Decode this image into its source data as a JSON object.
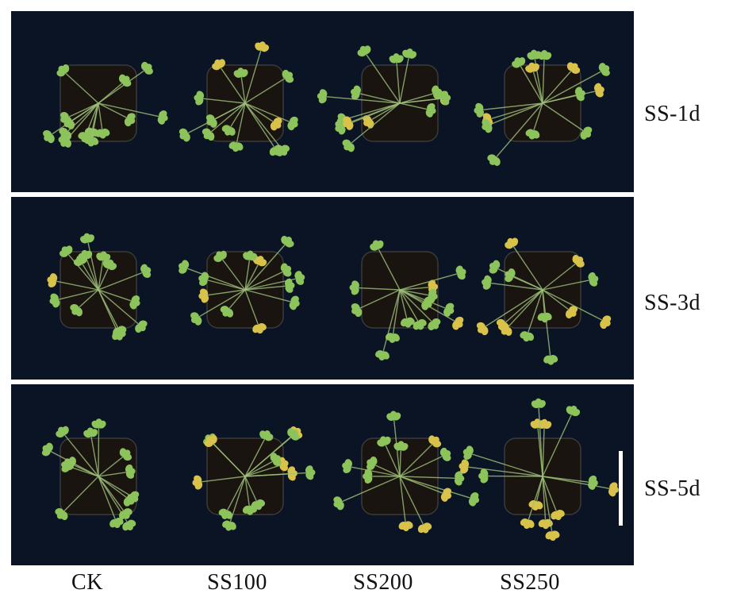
{
  "figure": {
    "rows": [
      {
        "label": "SS-1d"
      },
      {
        "label": "SS-3d"
      },
      {
        "label": "SS-5d"
      }
    ],
    "columns": [
      {
        "label": "CK"
      },
      {
        "label": "SS100"
      },
      {
        "label": "SS200"
      },
      {
        "label": "SS250"
      }
    ],
    "colors": {
      "background": "#0a1424",
      "soil": "#1a1410",
      "leaf": "#8cc35a",
      "leaf_yellow": "#d9c24a",
      "divider": "#ffffff"
    }
  }
}
